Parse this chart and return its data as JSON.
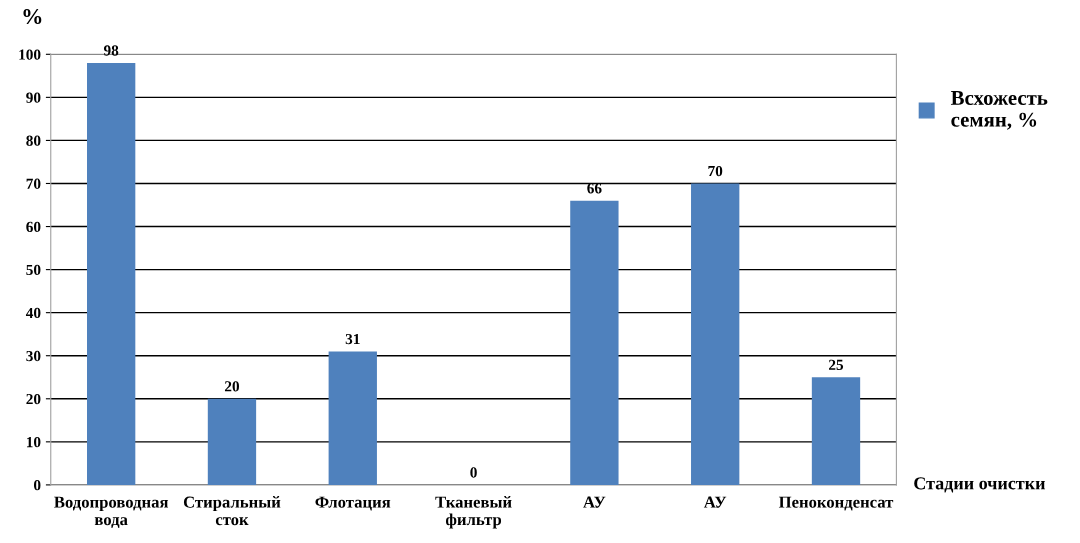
{
  "chart_data": {
    "type": "bar",
    "ylabel": "%",
    "xlabel": "Стадии очистки",
    "categories": [
      "Водопроводная\nвода",
      "Стиральный\nсток",
      "Флотация",
      "Тканевый\nфильтр",
      "АУ",
      "АУ",
      "Пеноконденсат"
    ],
    "series": [
      {
        "name": "Всхожесть\nсемян, %",
        "color": "#4f81bd",
        "values": [
          98,
          20,
          31,
          0,
          66,
          70,
          25
        ]
      }
    ],
    "ylim": [
      0,
      100
    ],
    "yticks": [
      0,
      10,
      20,
      30,
      40,
      50,
      60,
      70,
      80,
      90,
      100
    ],
    "grid": "y",
    "legend": "top right",
    "data_labels": true
  }
}
